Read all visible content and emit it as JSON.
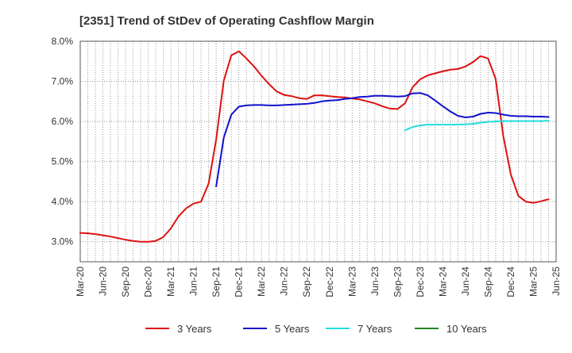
{
  "chart_data": {
    "type": "line",
    "title": "[2351]  Trend of StDev of Operating Cashflow Margin",
    "xlabel": "",
    "ylabel": "",
    "x_ticks": [
      "Mar-20",
      "Jun-20",
      "Sep-20",
      "Dec-20",
      "Mar-21",
      "Jun-21",
      "Sep-21",
      "Dec-21",
      "Mar-22",
      "Jun-22",
      "Sep-22",
      "Dec-22",
      "Mar-23",
      "Jun-23",
      "Sep-23",
      "Dec-23",
      "Mar-24",
      "Jun-24",
      "Sep-24",
      "Dec-24",
      "Mar-25",
      "Jun-25"
    ],
    "y_ticks": [
      "3.0%",
      "4.0%",
      "5.0%",
      "6.0%",
      "7.0%",
      "8.0%"
    ],
    "ylim": [
      2.5,
      8.0
    ],
    "grid": true,
    "legend_position": "bottom",
    "series": [
      {
        "name": "3 Years",
        "color": "#dd1111",
        "start_index": 0,
        "values": [
          3.22,
          3.21,
          3.19,
          3.16,
          3.13,
          3.09,
          3.05,
          3.02,
          3.0,
          3.0,
          3.02,
          3.12,
          3.33,
          3.63,
          3.83,
          3.95,
          4.0,
          4.45,
          5.55,
          7.02,
          7.65,
          7.75,
          7.57,
          7.37,
          7.14,
          6.93,
          6.75,
          6.66,
          6.63,
          6.58,
          6.56,
          6.65,
          6.65,
          6.63,
          6.61,
          6.6,
          6.57,
          6.55,
          6.5,
          6.45,
          6.38,
          6.32,
          6.31,
          6.45,
          6.85,
          7.05,
          7.15,
          7.2,
          7.25,
          7.29,
          7.31,
          7.37,
          7.48,
          7.63,
          7.57,
          7.06,
          5.65,
          4.68,
          4.14,
          4.0,
          3.97,
          4.01,
          4.06
        ]
      },
      {
        "name": "5 Years",
        "color": "#1111cc",
        "start_index": 18,
        "values": [
          4.38,
          5.6,
          6.17,
          6.37,
          6.4,
          6.41,
          6.41,
          6.4,
          6.4,
          6.41,
          6.42,
          6.43,
          6.44,
          6.46,
          6.5,
          6.52,
          6.53,
          6.56,
          6.58,
          6.61,
          6.62,
          6.64,
          6.64,
          6.63,
          6.62,
          6.63,
          6.7,
          6.71,
          6.65,
          6.52,
          6.38,
          6.25,
          6.14,
          6.1,
          6.12,
          6.19,
          6.22,
          6.21,
          6.17,
          6.14,
          6.13,
          6.13,
          6.12,
          6.12,
          6.11
        ]
      },
      {
        "name": "7 Years",
        "color": "#22dddd",
        "start_index": 43,
        "values": [
          5.78,
          5.86,
          5.9,
          5.92,
          5.92,
          5.92,
          5.92,
          5.92,
          5.93,
          5.94,
          5.97,
          5.99,
          6.0,
          6.01,
          6.01,
          6.01,
          6.01,
          6.01,
          6.01,
          6.02
        ]
      },
      {
        "name": "10 Years",
        "color": "#228822",
        "start_index": 0,
        "values": []
      }
    ]
  }
}
